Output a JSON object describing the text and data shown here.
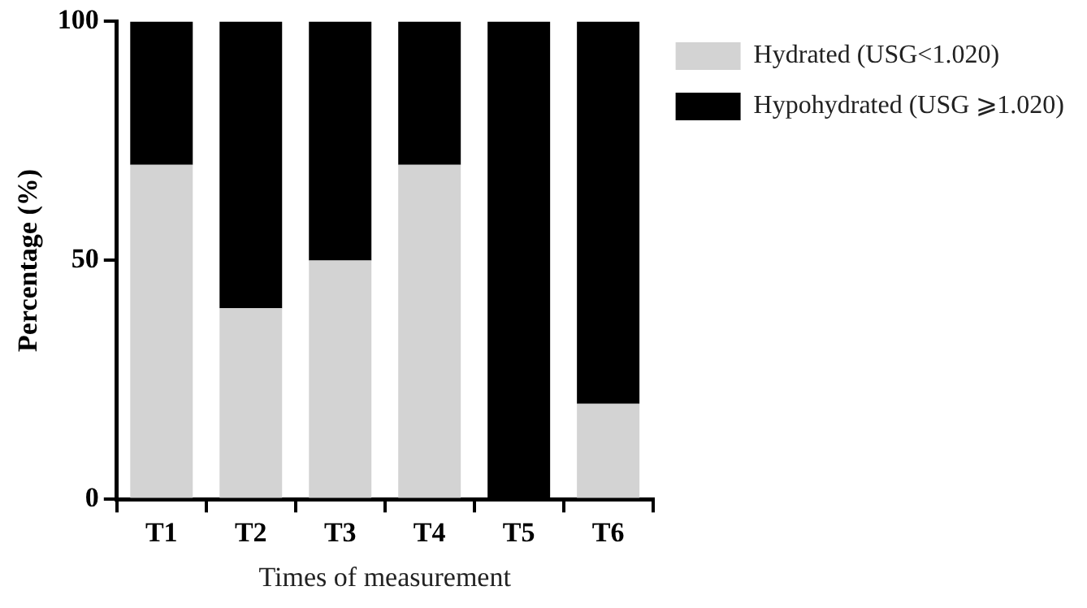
{
  "chart_data": {
    "type": "bar",
    "stacked": true,
    "xlabel": "Times of measurement",
    "ylabel": "Percentage (%)",
    "categories": [
      "T1",
      "T2",
      "T3",
      "T4",
      "T5",
      "T6"
    ],
    "series": [
      {
        "name": "Hydrated (USG<1.020)",
        "color": "#d3d3d3",
        "values": [
          70,
          40,
          50,
          70,
          0,
          20
        ]
      },
      {
        "name": "Hypohydrated (USG ⩾1.020)",
        "color": "#000000",
        "values": [
          30,
          60,
          50,
          30,
          100,
          80
        ]
      }
    ],
    "ylim": [
      0,
      100
    ],
    "yticks": [
      0,
      50,
      100
    ],
    "grid": false,
    "legend": "top right"
  }
}
